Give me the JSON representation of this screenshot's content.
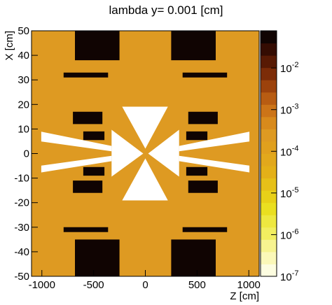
{
  "chart_data": {
    "type": "heatmap",
    "title": "lambda y=  0.001 [cm]",
    "xlabel": "Z [cm]",
    "ylabel": "X [cm]",
    "xlim": [
      -1100,
      1100
    ],
    "xticks": [
      -1000,
      -500,
      0,
      500,
      1000
    ],
    "ylim": [
      -50,
      50
    ],
    "yticks": [
      -50,
      -40,
      -30,
      -20,
      -10,
      0,
      10,
      20,
      30,
      40,
      50
    ],
    "zlim": [
      1e-07,
      0.078
    ],
    "zlog": true,
    "zticks": [
      {
        "value": 1e-07,
        "label": "10",
        "exponent": "-7"
      },
      {
        "value": 1e-06,
        "label": "10",
        "exponent": "-6"
      },
      {
        "value": 1e-05,
        "label": "10",
        "exponent": "-5"
      },
      {
        "value": 0.0001,
        "label": "10",
        "exponent": "-4"
      },
      {
        "value": 0.001,
        "label": "10",
        "exponent": "-3"
      },
      {
        "value": 0.01,
        "label": "10",
        "exponent": "-2"
      }
    ],
    "palette": [
      "#fdfde0",
      "#fbf8b8",
      "#f7f390",
      "#f2ee60",
      "#eee840",
      "#eadf20",
      "#e8d018",
      "#e6c018",
      "#e4b018",
      "#e2a81c",
      "#e0a01e",
      "#de9a22",
      "#d88a1c",
      "#cc7418",
      "#b85c12",
      "#9c420c",
      "#7c2c08",
      "#581a04",
      "#340c02",
      "#100402"
    ],
    "regions": [
      {
        "points": [
          [
            -1100,
            -50
          ],
          [
            1100,
            -50
          ],
          [
            1100,
            50
          ],
          [
            -1100,
            50
          ]
        ],
        "value": 0.0003
      },
      {
        "points": [
          [
            -680,
            38
          ],
          [
            -250,
            38
          ],
          [
            -250,
            50
          ],
          [
            -680,
            50
          ]
        ],
        "value": 0.05
      },
      {
        "points": [
          [
            250,
            38
          ],
          [
            680,
            38
          ],
          [
            680,
            50
          ],
          [
            250,
            50
          ]
        ],
        "value": 0.05
      },
      {
        "points": [
          [
            -680,
            -50
          ],
          [
            -250,
            -50
          ],
          [
            -250,
            -35
          ],
          [
            -680,
            -35
          ]
        ],
        "value": 0.05
      },
      {
        "points": [
          [
            250,
            -50
          ],
          [
            680,
            -50
          ],
          [
            680,
            -35
          ],
          [
            250,
            -35
          ]
        ],
        "value": 0.05
      },
      {
        "points": [
          [
            -790,
            31
          ],
          [
            -360,
            31
          ],
          [
            -360,
            33
          ],
          [
            -790,
            33
          ]
        ],
        "value": 0.05
      },
      {
        "points": [
          [
            360,
            31
          ],
          [
            790,
            31
          ],
          [
            790,
            33
          ],
          [
            360,
            33
          ]
        ],
        "value": 0.05
      },
      {
        "points": [
          [
            -790,
            -32
          ],
          [
            -360,
            -32
          ],
          [
            -360,
            -30
          ],
          [
            -790,
            -30
          ]
        ],
        "value": 0.05
      },
      {
        "points": [
          [
            360,
            -32
          ],
          [
            790,
            -32
          ],
          [
            790,
            -30
          ],
          [
            360,
            -30
          ]
        ],
        "value": 0.05
      },
      {
        "points": [
          [
            -700,
            12
          ],
          [
            -415,
            12
          ],
          [
            -415,
            17
          ],
          [
            -700,
            17
          ]
        ],
        "value": 0.05
      },
      {
        "points": [
          [
            415,
            12
          ],
          [
            700,
            12
          ],
          [
            700,
            17
          ],
          [
            415,
            17
          ]
        ],
        "value": 0.05
      },
      {
        "points": [
          [
            -700,
            -16
          ],
          [
            -415,
            -16
          ],
          [
            -415,
            -11
          ],
          [
            -700,
            -11
          ]
        ],
        "value": 0.05
      },
      {
        "points": [
          [
            415,
            -16
          ],
          [
            700,
            -16
          ],
          [
            700,
            -11
          ],
          [
            415,
            -11
          ]
        ],
        "value": 0.05
      },
      {
        "points": [
          [
            -600,
            5.5
          ],
          [
            -395,
            5.5
          ],
          [
            -395,
            9
          ],
          [
            -600,
            9
          ]
        ],
        "value": 0.05
      },
      {
        "points": [
          [
            395,
            5.5
          ],
          [
            600,
            5.5
          ],
          [
            600,
            9
          ],
          [
            395,
            9
          ]
        ],
        "value": 0.05
      },
      {
        "points": [
          [
            -600,
            -9
          ],
          [
            -395,
            -9
          ],
          [
            -395,
            -5.5
          ],
          [
            -600,
            -5.5
          ]
        ],
        "value": 0.05
      },
      {
        "points": [
          [
            395,
            -9
          ],
          [
            600,
            -9
          ],
          [
            600,
            -5.5
          ],
          [
            395,
            -5.5
          ]
        ],
        "value": 0.05
      },
      {
        "points": [
          [
            -224,
            19.1
          ],
          [
            218,
            19.1
          ],
          [
            0,
            2
          ]
        ],
        "value": null
      },
      {
        "points": [
          [
            -224,
            -19.1
          ],
          [
            218,
            -19.1
          ],
          [
            0,
            -2
          ]
        ],
        "value": null
      },
      {
        "points": [
          [
            -326,
            9.7
          ],
          [
            -326,
            -9.4
          ],
          [
            -20,
            0
          ]
        ],
        "value": null
      },
      {
        "points": [
          [
            326,
            9.7
          ],
          [
            326,
            -9.4
          ],
          [
            27,
            0
          ]
        ],
        "value": null
      },
      {
        "points": [
          [
            -1006,
            8.9
          ],
          [
            -326,
            3.1
          ],
          [
            -326,
            0.9
          ],
          [
            -1006,
            4.9
          ]
        ],
        "value": null
      },
      {
        "points": [
          [
            -1006,
            -4.9
          ],
          [
            -326,
            -0.9
          ],
          [
            -326,
            -3.1
          ],
          [
            -1006,
            -7.7
          ]
        ],
        "value": null
      },
      {
        "points": [
          [
            1006,
            8.9
          ],
          [
            326,
            3.1
          ],
          [
            326,
            0.9
          ],
          [
            1006,
            4.9
          ]
        ],
        "value": null
      },
      {
        "points": [
          [
            1006,
            -4.9
          ],
          [
            326,
            -0.9
          ],
          [
            326,
            -3.1
          ],
          [
            1006,
            -7.7
          ]
        ],
        "value": null
      }
    ]
  }
}
